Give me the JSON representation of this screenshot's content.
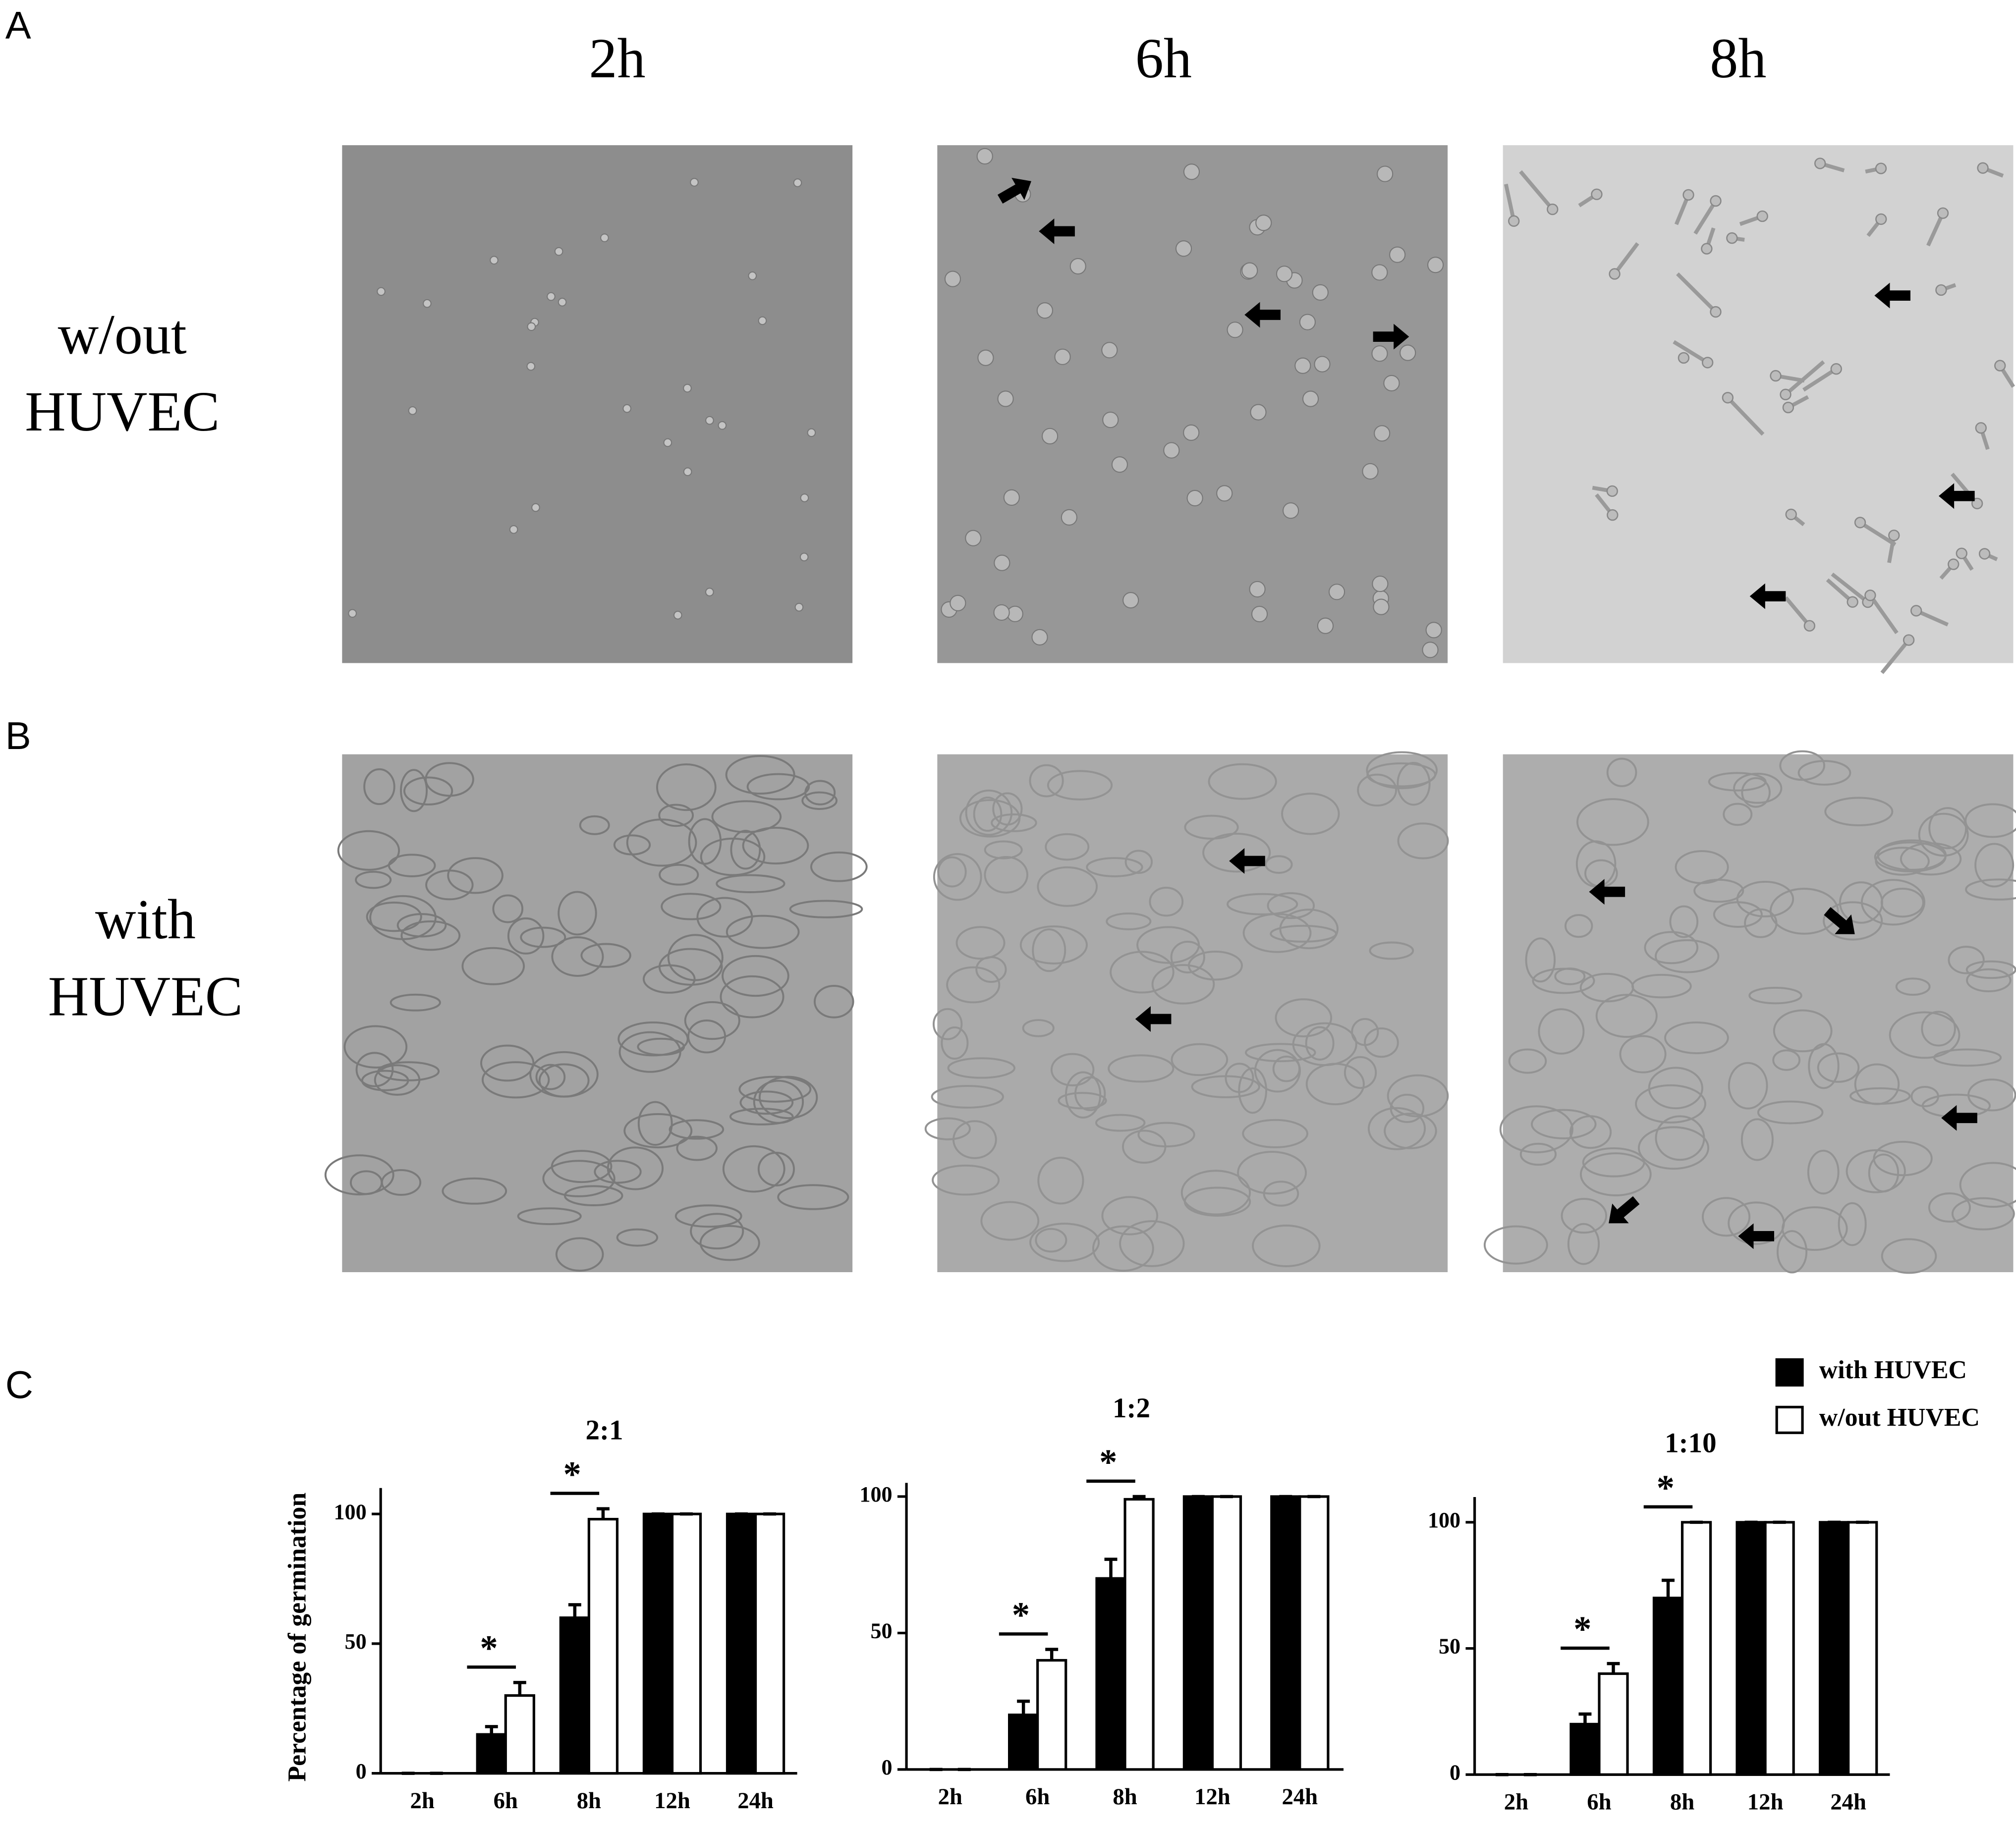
{
  "panel_labels": [
    "A",
    "B",
    "C"
  ],
  "columns": [
    "2h",
    "6h",
    "8h"
  ],
  "rows": [
    [
      "w/out",
      "HUVEC"
    ],
    [
      "with",
      "HUVEC"
    ]
  ],
  "chart_data": [
    {
      "type": "bar",
      "title": "2:1",
      "ylabel": "Percentage of germination",
      "categories": [
        "2h",
        "6h",
        "8h",
        "12h",
        "24h"
      ],
      "series": [
        {
          "name": "with HUVEC",
          "color": "#000000",
          "values": [
            0,
            15,
            60,
            100,
            100
          ],
          "errors": [
            0,
            3,
            5,
            0,
            0
          ]
        },
        {
          "name": "w/out HUVEC",
          "color": "#ffffff",
          "values": [
            0,
            30,
            98,
            100,
            100
          ],
          "errors": [
            0,
            5,
            4,
            0,
            0
          ]
        }
      ],
      "significance": [
        null,
        "*",
        "*",
        null,
        null
      ],
      "ylim": [
        0,
        110
      ],
      "yticks": [
        0,
        50,
        100
      ]
    },
    {
      "type": "bar",
      "title": "1:2",
      "categories": [
        "2h",
        "6h",
        "8h",
        "12h",
        "24h"
      ],
      "series": [
        {
          "name": "with HUVEC",
          "color": "#000000",
          "values": [
            0,
            20,
            70,
            100,
            100
          ],
          "errors": [
            0,
            5,
            7,
            0,
            0
          ]
        },
        {
          "name": "w/out HUVEC",
          "color": "#ffffff",
          "values": [
            0,
            40,
            99,
            100,
            100
          ],
          "errors": [
            0,
            4,
            1,
            0,
            0
          ]
        }
      ],
      "significance": [
        null,
        "*",
        "*",
        null,
        null
      ],
      "ylim": [
        0,
        105
      ],
      "yticks": [
        0,
        50,
        100
      ]
    },
    {
      "type": "bar",
      "title": "1:10",
      "categories": [
        "2h",
        "6h",
        "8h",
        "12h",
        "24h"
      ],
      "series": [
        {
          "name": "with HUVEC",
          "color": "#000000",
          "values": [
            0,
            20,
            70,
            100,
            100
          ],
          "errors": [
            0,
            4,
            7,
            0,
            0
          ]
        },
        {
          "name": "w/out HUVEC",
          "color": "#ffffff",
          "values": [
            0,
            40,
            100,
            100,
            100
          ],
          "errors": [
            0,
            4,
            0,
            0,
            0
          ]
        }
      ],
      "significance": [
        null,
        "*",
        "*",
        null,
        null
      ],
      "ylim": [
        0,
        110
      ],
      "yticks": [
        0,
        50,
        100
      ]
    }
  ]
}
